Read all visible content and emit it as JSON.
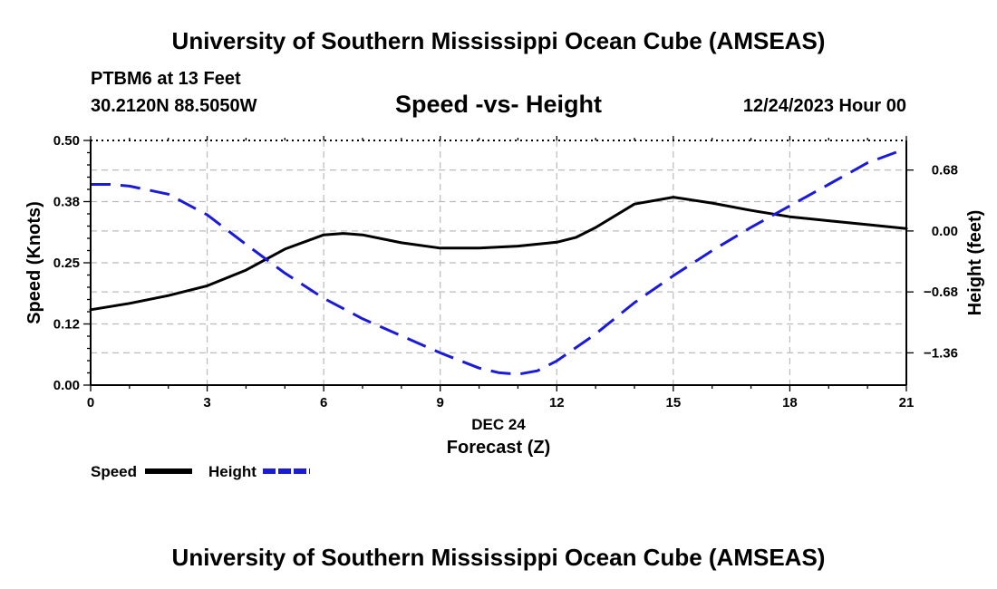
{
  "header": {
    "title": "University of Southern Mississippi Ocean Cube (AMSEAS)",
    "station": "PTBM6 at 13 Feet",
    "coords": "30.2120N  88.5050W",
    "subtitle": "Speed -vs- Height",
    "date": "12/24/2023 Hour 00"
  },
  "footer": {
    "title": "University of Southern Mississippi Ocean Cube (AMSEAS)"
  },
  "chart_data": {
    "type": "line",
    "title": "Speed -vs- Height",
    "xlabel": "Forecast (Z)",
    "xsublabel": "DEC 24",
    "ylabel": "Speed (Knots)",
    "y2label": "Height (feet)",
    "xlim": [
      0,
      21
    ],
    "ylim": [
      0,
      0.5
    ],
    "y2lim": [
      -1.72,
      1.01
    ],
    "x_ticks": [
      0,
      3,
      6,
      9,
      12,
      15,
      18,
      21
    ],
    "x_tick_labels": [
      "0",
      "3",
      "6",
      "9",
      "12",
      "15",
      "18",
      "21"
    ],
    "y_ticks": [
      0,
      0.125,
      0.25,
      0.375,
      0.5
    ],
    "y_tick_labels": [
      "0.00",
      "0.12",
      "0.25",
      "0.38",
      "0.50"
    ],
    "y2_ticks": [
      0.68,
      0,
      -0.68,
      -1.36
    ],
    "y2_tick_labels": [
      "0.68",
      "0.00",
      "−0.68",
      "−1.36"
    ],
    "grid": true,
    "series": [
      {
        "name": "Speed",
        "axis": "left",
        "color": "#000000",
        "dash": "solid",
        "x": [
          0,
          1,
          2,
          3,
          4,
          5,
          6,
          6.5,
          7,
          8,
          9,
          10,
          11,
          12,
          12.5,
          13,
          14,
          15,
          16,
          17,
          18,
          19,
          20,
          21
        ],
        "values": [
          0.154,
          0.167,
          0.183,
          0.203,
          0.235,
          0.278,
          0.307,
          0.31,
          0.307,
          0.291,
          0.28,
          0.28,
          0.284,
          0.292,
          0.302,
          0.322,
          0.37,
          0.384,
          0.372,
          0.357,
          0.344,
          0.336,
          0.328,
          0.32
        ]
      },
      {
        "name": "Height",
        "axis": "right",
        "color": "#1a1adc",
        "dash": "dashed",
        "x": [
          0,
          0.5,
          1,
          2,
          3,
          4,
          5,
          6,
          7,
          8,
          9,
          10,
          10.5,
          11,
          11.5,
          12,
          13,
          14,
          15,
          16,
          17,
          18,
          19,
          20,
          21
        ],
        "values": [
          0.52,
          0.52,
          0.5,
          0.41,
          0.18,
          -0.15,
          -0.47,
          -0.75,
          -0.98,
          -1.17,
          -1.36,
          -1.53,
          -1.58,
          -1.6,
          -1.56,
          -1.45,
          -1.15,
          -0.8,
          -0.5,
          -0.22,
          0.04,
          0.28,
          0.52,
          0.76,
          0.92
        ]
      }
    ],
    "legend": [
      {
        "name": "Speed",
        "label": "Speed"
      },
      {
        "name": "Height",
        "label": "Height"
      }
    ],
    "legend_position": "bottom-left"
  }
}
